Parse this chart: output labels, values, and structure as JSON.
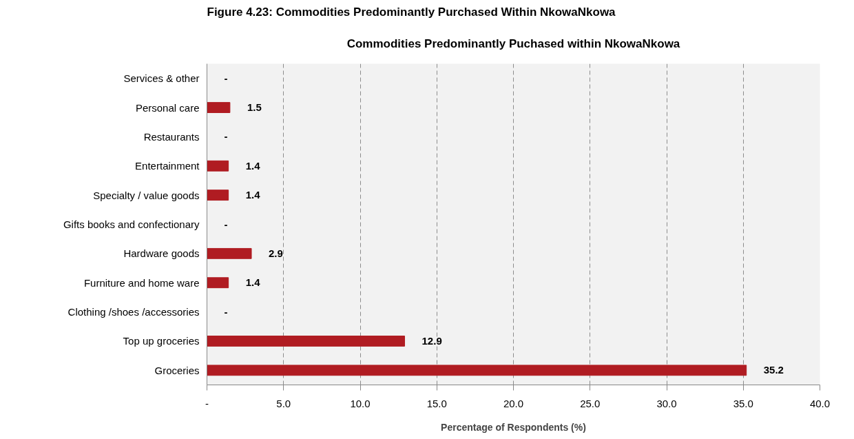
{
  "chart_data": {
    "type": "bar",
    "orientation": "horizontal",
    "title": "Commodities Predominantly Puchased within NkowaNkowa",
    "xlabel": "Percentage of Respondents (%)",
    "annotations": [
      "Figure 4.23: Commodities Predominantly Purchased Within NkowaNkowa"
    ],
    "categories": [
      "Services & other",
      "Personal care",
      "Restaurants",
      "Entertainment",
      "Specialty / value goods",
      "Gifts books and confectionary",
      "Hardware goods",
      "Furniture and home ware",
      "Clothing /shoes /accessories",
      "Top up groceries",
      "Groceries"
    ],
    "values": [
      0,
      1.5,
      0,
      1.4,
      1.4,
      0,
      2.9,
      1.4,
      0,
      12.9,
      35.2
    ],
    "value_labels": [
      "-",
      "1.5",
      "-",
      "1.4",
      "1.4",
      "-",
      "2.9",
      "1.4",
      "-",
      "12.9",
      "35.2"
    ],
    "color": "#b01c22",
    "xlim": [
      0,
      40
    ],
    "xticks": [
      {
        "value": 0,
        "label": "-"
      },
      {
        "value": 5,
        "label": "5.0"
      },
      {
        "value": 10,
        "label": "10.0"
      },
      {
        "value": 15,
        "label": "15.0"
      },
      {
        "value": 20,
        "label": "20.0"
      },
      {
        "value": 25,
        "label": "25.0"
      },
      {
        "value": 30,
        "label": "30.0"
      },
      {
        "value": 35,
        "label": "35.0"
      },
      {
        "value": 40,
        "label": "40.0"
      }
    ],
    "grid": "x",
    "line_style": "dashed"
  }
}
